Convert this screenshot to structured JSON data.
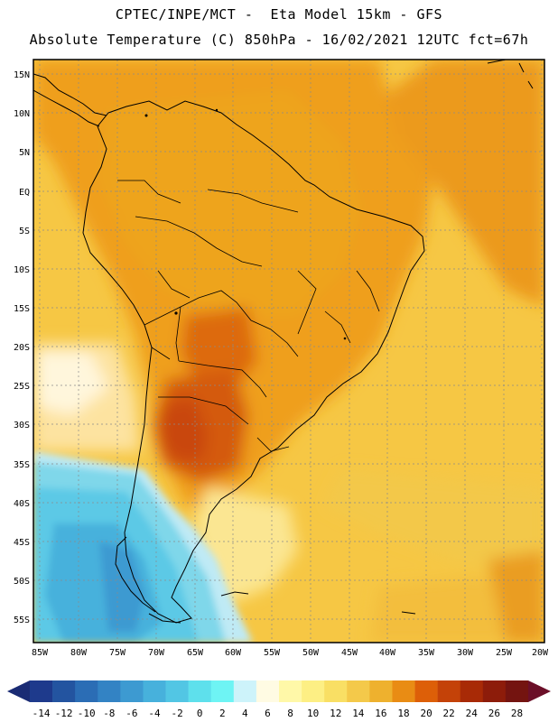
{
  "header": {
    "line1": "CPTEC/INPE/MCT -  Eta Model 15km - GFS",
    "line2": "Absolute Temperature (C) 850hPa - 16/02/2021 12UTC fct=67h"
  },
  "map": {
    "lat_ticks": [
      "15N",
      "10N",
      "5N",
      "EQ",
      "5S",
      "10S",
      "15S",
      "20S",
      "25S",
      "30S",
      "35S",
      "40S",
      "45S",
      "50S",
      "55S"
    ],
    "lon_ticks": [
      "85W",
      "80W",
      "75W",
      "70W",
      "65W",
      "60W",
      "55W",
      "50W",
      "45W",
      "40W",
      "35W",
      "30W",
      "25W",
      "20W"
    ],
    "lon_range_deg": [
      -86,
      -20
    ],
    "lat_range_deg": [
      -58,
      16.5
    ]
  },
  "legend": {
    "labels": [
      "-14",
      "-12",
      "-10",
      "-8",
      "-6",
      "-4",
      "-2",
      "0",
      "2",
      "4",
      "6",
      "8",
      "10",
      "12",
      "14",
      "16",
      "18",
      "20",
      "22",
      "24",
      "26",
      "28"
    ],
    "colors": [
      "#1e3a8c",
      "#2354a0",
      "#2b6db5",
      "#3383c4",
      "#3d9ad1",
      "#47b1dc",
      "#52c6e4",
      "#5ee0ec",
      "#6ef4f4",
      "#cdf3fa",
      "#fffbe3",
      "#fff8a8",
      "#fdef84",
      "#f9df64",
      "#f4c94a",
      "#eeb12e",
      "#e98c14",
      "#dd5f08",
      "#c44208",
      "#a82a06",
      "#8d1c0a",
      "#741410"
    ],
    "low_arrow_color": "#1a2b74",
    "high_arrow_color": "#6b0f28"
  }
}
